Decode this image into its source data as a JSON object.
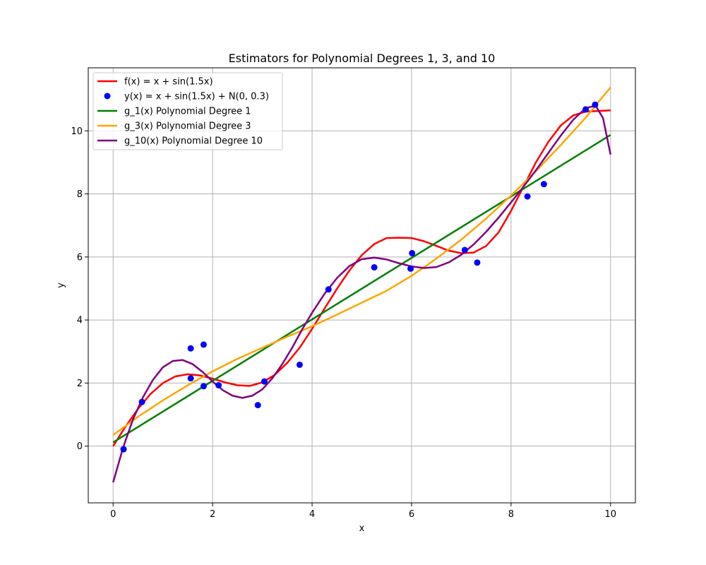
{
  "chart_data": {
    "type": "line",
    "title": "Estimators for Polynomial Degrees 1, 3, and 10",
    "xlabel": "x",
    "ylabel": "y",
    "xlim": [
      -0.5,
      10.5
    ],
    "ylim": [
      -1.8,
      12.0
    ],
    "xticks": [
      0,
      2,
      4,
      6,
      8,
      10
    ],
    "yticks": [
      0,
      2,
      4,
      6,
      8,
      10
    ],
    "grid": true,
    "legend_position": "top-left",
    "series": [
      {
        "name": "f(x) = x + sin(1.5x)",
        "kind": "line",
        "color": "#ff0000",
        "x": [
          0,
          0.25,
          0.5,
          0.75,
          1.0,
          1.25,
          1.5,
          1.75,
          2.0,
          2.25,
          2.5,
          2.75,
          3.0,
          3.25,
          3.5,
          3.75,
          4.0,
          4.25,
          4.5,
          4.75,
          5.0,
          5.25,
          5.5,
          5.75,
          6.0,
          6.25,
          6.5,
          6.75,
          7.0,
          7.25,
          7.5,
          7.75,
          8.0,
          8.25,
          8.5,
          8.75,
          9.0,
          9.25,
          9.5,
          9.75,
          10.0
        ],
        "y": [
          0.0,
          0.62,
          1.18,
          1.65,
          2.0,
          2.21,
          2.28,
          2.24,
          2.14,
          2.02,
          1.93,
          1.91,
          2.02,
          2.26,
          2.64,
          3.12,
          3.72,
          4.36,
          4.99,
          5.57,
          6.06,
          6.41,
          6.6,
          6.61,
          6.6,
          6.5,
          6.35,
          6.2,
          6.12,
          6.14,
          6.35,
          6.78,
          7.46,
          8.23,
          9.0,
          9.65,
          10.17,
          10.49,
          10.61,
          10.63,
          10.65
        ]
      },
      {
        "name": "y(x) = x + sin(1.5x) + N(0, 0.3)",
        "kind": "scatter",
        "color": "#0000ff",
        "x": [
          0.21,
          0.58,
          1.56,
          1.56,
          1.82,
          1.82,
          2.12,
          2.91,
          3.04,
          3.75,
          4.33,
          5.25,
          5.98,
          6.01,
          7.07,
          7.32,
          8.33,
          8.66,
          9.5,
          9.69
        ],
        "y": [
          -0.1,
          1.4,
          3.1,
          2.15,
          3.22,
          1.9,
          1.93,
          1.3,
          2.05,
          2.58,
          4.97,
          5.67,
          5.63,
          6.12,
          6.22,
          5.82,
          7.92,
          8.31,
          10.68,
          10.83
        ]
      },
      {
        "name": "g_1(x) Polynomial Degree 1",
        "kind": "line",
        "color": "#008000",
        "x": [
          0,
          10
        ],
        "y": [
          0.12,
          9.87
        ]
      },
      {
        "name": "g_3(x) Polynomial Degree 3",
        "kind": "line",
        "color": "#ffa500",
        "x": [
          0,
          0.5,
          1.0,
          1.5,
          2.0,
          2.5,
          3.0,
          3.5,
          4.0,
          4.5,
          5.0,
          5.5,
          6.0,
          6.5,
          7.0,
          7.5,
          8.0,
          8.5,
          9.0,
          9.5,
          10.0
        ],
        "y": [
          0.35,
          0.93,
          1.45,
          1.93,
          2.37,
          2.77,
          3.12,
          3.47,
          3.8,
          4.17,
          4.55,
          4.93,
          5.4,
          5.95,
          6.55,
          7.22,
          7.95,
          8.72,
          9.55,
          10.42,
          11.38
        ]
      },
      {
        "name": "g_10(x) Polynomial Degree 10",
        "kind": "line",
        "color": "#800080",
        "x": [
          0,
          0.2,
          0.4,
          0.6,
          0.8,
          1.0,
          1.2,
          1.4,
          1.6,
          1.8,
          2.0,
          2.2,
          2.4,
          2.6,
          2.8,
          3.0,
          3.2,
          3.4,
          3.6,
          3.8,
          4.0,
          4.25,
          4.5,
          4.75,
          5.0,
          5.25,
          5.5,
          5.75,
          6.0,
          6.25,
          6.5,
          6.75,
          7.0,
          7.25,
          7.5,
          7.75,
          8.0,
          8.25,
          8.5,
          8.75,
          9.0,
          9.25,
          9.5,
          9.7,
          9.85,
          10.0
        ],
        "y": [
          -1.15,
          -0.05,
          0.85,
          1.55,
          2.1,
          2.5,
          2.7,
          2.73,
          2.6,
          2.35,
          2.05,
          1.78,
          1.6,
          1.53,
          1.6,
          1.8,
          2.15,
          2.6,
          3.12,
          3.7,
          4.23,
          4.83,
          5.33,
          5.71,
          5.93,
          5.98,
          5.92,
          5.8,
          5.7,
          5.65,
          5.68,
          5.83,
          6.07,
          6.4,
          6.8,
          7.25,
          7.73,
          8.23,
          8.75,
          9.3,
          9.85,
          10.35,
          10.72,
          10.8,
          10.4,
          9.25
        ]
      }
    ]
  }
}
